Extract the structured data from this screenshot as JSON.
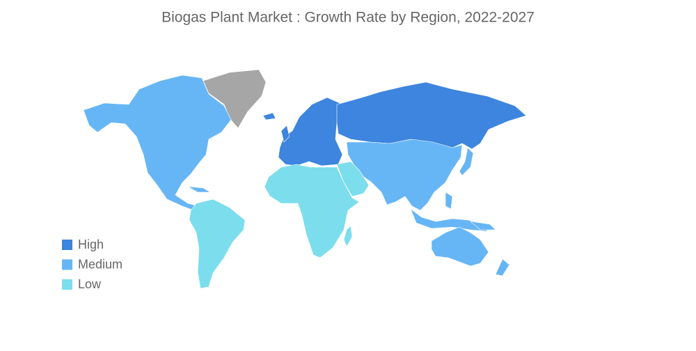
{
  "title": "Biogas Plant Market : Growth Rate by Region, 2022-2027",
  "legend": [
    {
      "label": "High",
      "color": "#3d85de"
    },
    {
      "label": "Medium",
      "color": "#66b6f6"
    },
    {
      "label": "Low",
      "color": "#7cdded"
    }
  ]
}
